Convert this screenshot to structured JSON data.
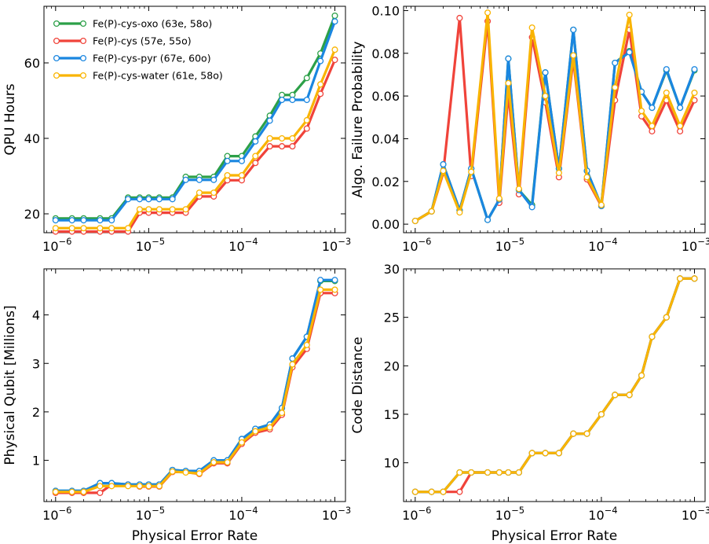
{
  "colors": {
    "oxo": "#2ca048",
    "cys": "#f0433a",
    "pyr": "#1a86e0",
    "water": "#f9b400"
  },
  "x_error_rates": [
    1e-06,
    1.5e-06,
    2e-06,
    3e-06,
    4e-06,
    6e-06,
    8e-06,
    1e-05,
    1.3e-05,
    1.8e-05,
    2.5e-05,
    3.5e-05,
    5e-05,
    7e-05,
    0.0001,
    0.00014,
    0.0002,
    0.00027,
    0.00035,
    0.0005,
    0.0007,
    0.001
  ],
  "chart_data": [
    {
      "type": "line",
      "xlabel": "",
      "ylabel": "QPU Hours",
      "xscale": "log",
      "xlim": [
        7.5e-07,
        0.0013
      ],
      "ylim": [
        15,
        75
      ],
      "yticks": [
        "20",
        "40",
        "60"
      ],
      "ytick_values": [
        20,
        40,
        60
      ],
      "legend": "top-left",
      "series": [
        {
          "name": "Fe(P)-cys-oxo (63e, 58o)",
          "color_key": "oxo",
          "values": [
            18.8,
            18.8,
            18.8,
            18.8,
            18.8,
            24.3,
            24.3,
            24.3,
            24.3,
            24.3,
            29.8,
            29.8,
            29.8,
            35.3,
            35.3,
            40.5,
            46.0,
            51.5,
            51.5,
            56.0,
            62.5,
            72.5
          ]
        },
        {
          "name": "Fe(P)-cys (57e, 55o)",
          "color_key": "cys",
          "values": [
            15.3,
            15.3,
            15.3,
            15.3,
            15.3,
            15.3,
            20.3,
            20.3,
            20.3,
            20.3,
            20.3,
            24.6,
            24.6,
            28.9,
            28.9,
            33.5,
            37.9,
            37.9,
            37.9,
            42.6,
            51.8,
            60.8
          ]
        },
        {
          "name": "Fe(P)-cys-pyr (67e, 60o)",
          "color_key": "pyr",
          "values": [
            18.3,
            18.3,
            18.3,
            18.3,
            18.3,
            23.9,
            23.9,
            23.9,
            23.9,
            23.9,
            29.0,
            29.0,
            29.0,
            34.0,
            34.0,
            39.2,
            44.7,
            50.2,
            50.2,
            50.2,
            60.5,
            71.0
          ]
        },
        {
          "name": "Fe(P)-cys-water  (61e, 58o)",
          "color_key": "water",
          "values": [
            16.2,
            16.2,
            16.2,
            16.2,
            16.2,
            16.2,
            21.2,
            21.2,
            21.2,
            21.2,
            21.2,
            25.6,
            25.6,
            30.2,
            30.2,
            35.3,
            40.0,
            40.0,
            40.0,
            44.8,
            54.3,
            63.5
          ]
        }
      ]
    },
    {
      "type": "line",
      "xlabel": "",
      "ylabel": "Algo. Failure Probability",
      "xscale": "log",
      "xlim": [
        7.5e-07,
        0.0013
      ],
      "ylim": [
        -0.004,
        0.102
      ],
      "yticks": [
        "0.00",
        "0.02",
        "0.04",
        "0.06",
        "0.08",
        "0.10"
      ],
      "ytick_values": [
        0,
        0.02,
        0.04,
        0.06,
        0.08,
        0.1
      ],
      "series": [
        {
          "name": "Fe(P)-cys-oxo (63e, 58o)",
          "color_key": "oxo",
          "values": [
            0.0015,
            0.006,
            0.028,
            0.0065,
            0.026,
            0.002,
            0.0115,
            0.0775,
            0.016,
            0.009,
            0.071,
            0.026,
            0.091,
            0.025,
            0.0085,
            0.0755,
            0.081,
            0.062,
            0.0545,
            0.072,
            0.0545,
            0.072
          ]
        },
        {
          "name": "Fe(P)-cys (57e, 55o)",
          "color_key": "cys",
          "values": [
            0.0015,
            0.006,
            0.024,
            0.0965,
            0.0225,
            0.095,
            0.01,
            0.061,
            0.014,
            0.0875,
            0.057,
            0.022,
            0.077,
            0.021,
            0.0085,
            0.058,
            0.091,
            0.0505,
            0.0435,
            0.058,
            0.0435,
            0.058
          ]
        },
        {
          "name": "Fe(P)-cys-pyr (67e, 60o)",
          "color_key": "pyr",
          "values": [
            0.0015,
            0.006,
            0.028,
            0.0065,
            0.026,
            0.002,
            0.0115,
            0.0775,
            0.016,
            0.008,
            0.071,
            0.026,
            0.091,
            0.025,
            0.0085,
            0.0755,
            0.0805,
            0.062,
            0.0545,
            0.0725,
            0.0545,
            0.0725
          ]
        },
        {
          "name": "Fe(P)-cys-water  (61e, 58o)",
          "color_key": "water",
          "values": [
            0.0015,
            0.006,
            0.025,
            0.0055,
            0.0245,
            0.099,
            0.012,
            0.066,
            0.0165,
            0.092,
            0.06,
            0.024,
            0.079,
            0.022,
            0.009,
            0.064,
            0.098,
            0.053,
            0.046,
            0.0615,
            0.046,
            0.0615
          ]
        }
      ]
    },
    {
      "type": "line",
      "xlabel": "Physical Error Rate",
      "ylabel": "Physical Qubit [Millions]",
      "xscale": "log",
      "xlim": [
        7.5e-07,
        0.0013
      ],
      "ylim": [
        0.15,
        4.95
      ],
      "yticks": [
        "1",
        "2",
        "3",
        "4"
      ],
      "ytick_values": [
        1,
        2,
        3,
        4
      ],
      "series": [
        {
          "name": "Fe(P)-cys-oxo (63e, 58o)",
          "color_key": "oxo",
          "values": [
            0.37,
            0.37,
            0.37,
            0.53,
            0.53,
            0.5,
            0.5,
            0.5,
            0.5,
            0.8,
            0.78,
            0.78,
            1.0,
            1.0,
            1.44,
            1.65,
            1.74,
            2.08,
            3.1,
            3.55,
            4.7,
            4.7
          ]
        },
        {
          "name": "Fe(P)-cys (57e, 55o)",
          "color_key": "cys",
          "values": [
            0.33,
            0.33,
            0.33,
            0.33,
            0.5,
            0.5,
            0.46,
            0.46,
            0.46,
            0.76,
            0.76,
            0.72,
            0.94,
            0.94,
            1.34,
            1.57,
            1.64,
            1.94,
            2.92,
            3.3,
            4.45,
            4.45
          ]
        },
        {
          "name": "Fe(P)-cys-pyr (67e, 60o)",
          "color_key": "pyr",
          "values": [
            0.37,
            0.37,
            0.37,
            0.53,
            0.53,
            0.5,
            0.5,
            0.5,
            0.5,
            0.8,
            0.78,
            0.78,
            1.0,
            1.0,
            1.44,
            1.65,
            1.74,
            2.08,
            3.1,
            3.55,
            4.72,
            4.72
          ]
        },
        {
          "name": "Fe(P)-cys-water  (61e, 58o)",
          "color_key": "water",
          "values": [
            0.35,
            0.35,
            0.35,
            0.47,
            0.47,
            0.47,
            0.47,
            0.47,
            0.47,
            0.77,
            0.75,
            0.73,
            0.96,
            0.96,
            1.37,
            1.6,
            1.68,
            1.98,
            2.98,
            3.38,
            4.52,
            4.52
          ]
        }
      ]
    },
    {
      "type": "line",
      "xlabel": "Physical Error Rate",
      "ylabel": "Code Distance",
      "xscale": "log",
      "xlim": [
        7.5e-07,
        0.0013
      ],
      "ylim": [
        6,
        30
      ],
      "yticks": [
        "10",
        "15",
        "20",
        "25",
        "30"
      ],
      "ytick_values": [
        10,
        15,
        20,
        25,
        30
      ],
      "series": [
        {
          "name": "Fe(P)-cys-oxo (63e, 58o)",
          "color_key": "oxo",
          "values": [
            7,
            7,
            7,
            9,
            9,
            9,
            9,
            9,
            9,
            11,
            11,
            11,
            13,
            13,
            15,
            17,
            17,
            19,
            23,
            25,
            29,
            29
          ]
        },
        {
          "name": "Fe(P)-cys (57e, 55o)",
          "color_key": "cys",
          "values": [
            7,
            7,
            7,
            7,
            9,
            9,
            9,
            9,
            9,
            11,
            11,
            11,
            13,
            13,
            15,
            17,
            17,
            19,
            23,
            25,
            29,
            29
          ]
        },
        {
          "name": "Fe(P)-cys-pyr (67e, 60o)",
          "color_key": "pyr",
          "values": [
            7,
            7,
            7,
            9,
            9,
            9,
            9,
            9,
            9,
            11,
            11,
            11,
            13,
            13,
            15,
            17,
            17,
            19,
            23,
            25,
            29,
            29
          ]
        },
        {
          "name": "Fe(P)-cys-water  (61e, 58o)",
          "color_key": "water",
          "values": [
            7,
            7,
            7,
            9,
            9,
            9,
            9,
            9,
            9,
            11,
            11,
            11,
            13,
            13,
            15,
            17,
            17,
            19,
            23,
            25,
            29,
            29
          ]
        }
      ]
    }
  ],
  "xtick_labels": [
    "10",
    "10",
    "10",
    "10"
  ],
  "xtick_exponents": [
    "−6",
    "−5",
    "−4",
    "−3"
  ],
  "xtick_values": [
    1e-06,
    1e-05,
    0.0001,
    0.001
  ]
}
